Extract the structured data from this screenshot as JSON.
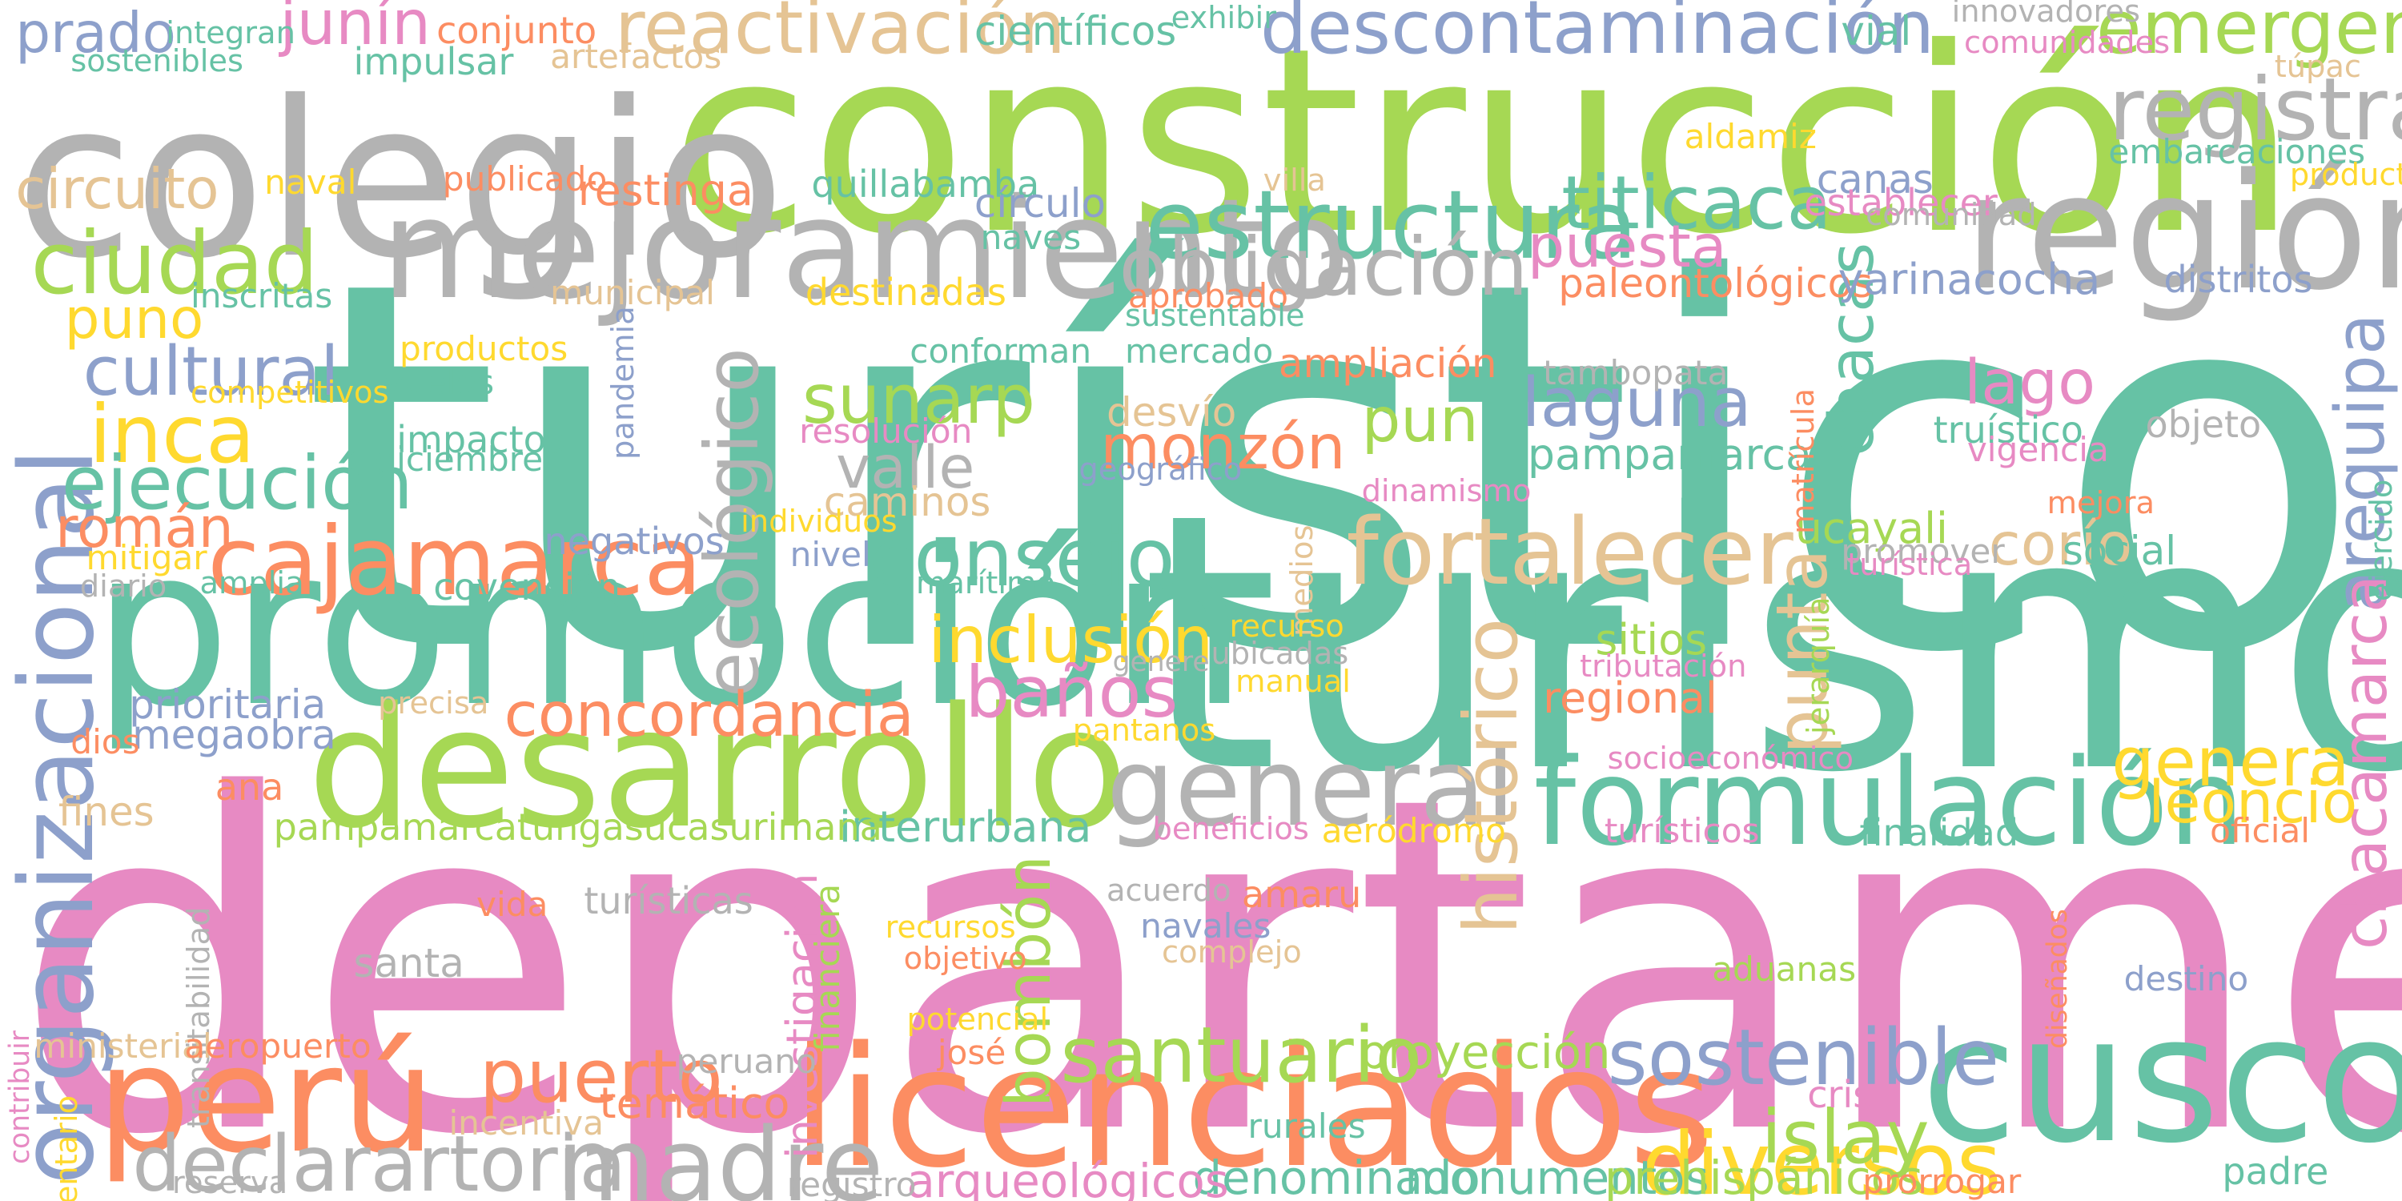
{
  "palette": {
    "teal": "#66c2a5",
    "orange": "#fc8d62",
    "blue": "#8da0cb",
    "pink": "#e78ac3",
    "green": "#a6d854",
    "yellow": "#ffd92f",
    "tan": "#e5c494",
    "gray": "#b3b3b3"
  },
  "words": [
    {
      "text": "turístico",
      "color": "teal"
    },
    {
      "text": "departamento",
      "color": "pink"
    },
    {
      "text": "turismo",
      "color": "teal"
    },
    {
      "text": "construcción",
      "color": "green"
    },
    {
      "text": "colegio",
      "color": "gray"
    },
    {
      "text": "promoción",
      "color": "teal"
    },
    {
      "text": "desarrollo",
      "color": "green"
    },
    {
      "text": "licenciados",
      "color": "orange"
    },
    {
      "text": "cusco",
      "color": "teal"
    },
    {
      "text": "región",
      "color": "gray"
    },
    {
      "text": "mejoramiento",
      "color": "gray"
    },
    {
      "text": "perú",
      "color": "orange"
    },
    {
      "text": "organizacional",
      "color": "blue"
    },
    {
      "text": "formulación",
      "color": "teal"
    },
    {
      "text": "general",
      "color": "gray"
    },
    {
      "text": "estructura",
      "color": "teal"
    },
    {
      "text": "madre",
      "color": "gray"
    },
    {
      "text": "cajamarca",
      "color": "orange"
    },
    {
      "text": "fortalecer",
      "color": "tan"
    },
    {
      "text": "diversos",
      "color": "yellow"
    },
    {
      "text": "registrar",
      "color": "gray"
    },
    {
      "text": "titicaca",
      "color": "teal"
    },
    {
      "text": "ciudad",
      "color": "green"
    },
    {
      "text": "obligación",
      "color": "gray"
    },
    {
      "text": "declarartoria",
      "color": "gray"
    },
    {
      "text": "santuario",
      "color": "green"
    },
    {
      "text": "consejo",
      "color": "teal"
    },
    {
      "text": "sostenible",
      "color": "blue"
    },
    {
      "text": "islay",
      "color": "green"
    },
    {
      "text": "ecológico",
      "color": "gray"
    },
    {
      "text": "histórico",
      "color": "tan"
    },
    {
      "text": "puerto",
      "color": "orange"
    },
    {
      "text": "inca",
      "color": "yellow"
    },
    {
      "text": "ejecución",
      "color": "teal"
    },
    {
      "text": "descontaminación",
      "color": "blue"
    },
    {
      "text": "reactivación",
      "color": "tan"
    },
    {
      "text": "emergencia",
      "color": "green"
    },
    {
      "text": "arequipa",
      "color": "blue"
    },
    {
      "text": "chacamarca",
      "color": "pink"
    },
    {
      "text": "punta",
      "color": "tan"
    },
    {
      "text": "cultural",
      "color": "blue"
    },
    {
      "text": "baños",
      "color": "pink"
    },
    {
      "text": "genera",
      "color": "yellow"
    },
    {
      "text": "laguna",
      "color": "blue"
    },
    {
      "text": "sunarp",
      "color": "green"
    },
    {
      "text": "inclusión",
      "color": "yellow"
    },
    {
      "text": "concordancia",
      "color": "orange"
    },
    {
      "text": "bombón",
      "color": "green"
    },
    {
      "text": "chacas",
      "color": "teal"
    },
    {
      "text": "monzón",
      "color": "orange"
    },
    {
      "text": "lago",
      "color": "pink"
    },
    {
      "text": "pun",
      "color": "green"
    },
    {
      "text": "valle",
      "color": "gray"
    },
    {
      "text": "corío",
      "color": "tan"
    },
    {
      "text": "leoncio",
      "color": "yellow"
    },
    {
      "text": "puesta",
      "color": "pink"
    },
    {
      "text": "junín",
      "color": "pink"
    },
    {
      "text": "circuito",
      "color": "tan"
    },
    {
      "text": "prado",
      "color": "blue"
    },
    {
      "text": "puno",
      "color": "yellow"
    },
    {
      "text": "román",
      "color": "orange"
    },
    {
      "text": "temático",
      "color": "orange"
    },
    {
      "text": "proyección",
      "color": "green"
    },
    {
      "text": "monumentos",
      "color": "teal"
    },
    {
      "text": "prehispánicos",
      "color": "green"
    },
    {
      "text": "denominado",
      "color": "teal"
    },
    {
      "text": "arqueológicos",
      "color": "pink"
    },
    {
      "text": "investigación",
      "color": "pink"
    },
    {
      "text": "regional",
      "color": "orange"
    },
    {
      "text": "amaru",
      "color": "orange"
    },
    {
      "text": "sitios",
      "color": "green"
    },
    {
      "text": "ucayali",
      "color": "green"
    },
    {
      "text": "paleontológicos",
      "color": "orange"
    },
    {
      "text": "yarinacocha",
      "color": "blue"
    },
    {
      "text": "pampamarca",
      "color": "teal"
    },
    {
      "text": "interurbana",
      "color": "teal"
    },
    {
      "text": "pampamarcatungasucasurimana",
      "color": "green"
    },
    {
      "text": "prioritaria",
      "color": "blue"
    },
    {
      "text": "megaobra",
      "color": "blue"
    },
    {
      "text": "ampliación",
      "color": "orange"
    },
    {
      "text": "caminos",
      "color": "tan"
    },
    {
      "text": "desvío",
      "color": "tan"
    },
    {
      "text": "conjunto",
      "color": "orange"
    },
    {
      "text": "impulsar",
      "color": "teal"
    },
    {
      "text": "artefactos",
      "color": "tan"
    },
    {
      "text": "integran",
      "color": "teal"
    },
    {
      "text": "sostenibles",
      "color": "teal"
    },
    {
      "text": "científicos",
      "color": "teal"
    },
    {
      "text": "exhibir",
      "color": "teal"
    },
    {
      "text": "vial",
      "color": "teal"
    },
    {
      "text": "innovadores",
      "color": "gray"
    },
    {
      "text": "comunidades",
      "color": "pink"
    },
    {
      "text": "túpac",
      "color": "tan"
    },
    {
      "text": "aldamiz",
      "color": "yellow"
    },
    {
      "text": "embarcaciones",
      "color": "teal"
    },
    {
      "text": "producto",
      "color": "yellow"
    },
    {
      "text": "naval",
      "color": "yellow"
    },
    {
      "text": "publicado",
      "color": "orange"
    },
    {
      "text": "restinga",
      "color": "orange"
    },
    {
      "text": "quillabamba",
      "color": "teal"
    },
    {
      "text": "villa",
      "color": "tan"
    },
    {
      "text": "círculo",
      "color": "blue"
    },
    {
      "text": "canas",
      "color": "blue"
    },
    {
      "text": "establecer",
      "color": "pink"
    },
    {
      "text": "comunidad",
      "color": "gray"
    },
    {
      "text": "naves",
      "color": "teal"
    },
    {
      "text": "distritos",
      "color": "blue"
    },
    {
      "text": "inscritas",
      "color": "teal"
    },
    {
      "text": "municipal",
      "color": "tan"
    },
    {
      "text": "destinadas",
      "color": "yellow"
    },
    {
      "text": "aprobado",
      "color": "orange"
    },
    {
      "text": "sustentable",
      "color": "teal"
    },
    {
      "text": "productos",
      "color": "yellow"
    },
    {
      "text": "pandemia",
      "color": "blue"
    },
    {
      "text": "conforman",
      "color": "teal"
    },
    {
      "text": "mercado",
      "color": "teal"
    },
    {
      "text": "tambopata",
      "color": "gray"
    },
    {
      "text": "vuelos",
      "color": "teal"
    },
    {
      "text": "competitivos",
      "color": "yellow"
    },
    {
      "text": "matrícula",
      "color": "orange"
    },
    {
      "text": "truístico",
      "color": "teal"
    },
    {
      "text": "objeto",
      "color": "gray"
    },
    {
      "text": "vigencia",
      "color": "pink"
    },
    {
      "text": "impactos",
      "color": "teal"
    },
    {
      "text": "diciembre",
      "color": "teal"
    },
    {
      "text": "resolución",
      "color": "pink"
    },
    {
      "text": "geográfico",
      "color": "blue"
    },
    {
      "text": "dinamismo",
      "color": "pink"
    },
    {
      "text": "mejora",
      "color": "orange"
    },
    {
      "text": "ejercido",
      "color": "teal"
    },
    {
      "text": "individuos",
      "color": "yellow"
    },
    {
      "text": "negativos",
      "color": "blue"
    },
    {
      "text": "nivel",
      "color": "blue"
    },
    {
      "text": "medios",
      "color": "tan"
    },
    {
      "text": "promover",
      "color": "gray"
    },
    {
      "text": "social",
      "color": "teal"
    },
    {
      "text": "turística",
      "color": "pink"
    },
    {
      "text": "mitigar",
      "color": "yellow"
    },
    {
      "text": "amplia",
      "color": "teal"
    },
    {
      "text": "covención",
      "color": "teal"
    },
    {
      "text": "diario",
      "color": "gray"
    },
    {
      "text": "marítimo",
      "color": "teal"
    },
    {
      "text": "recurso",
      "color": "yellow"
    },
    {
      "text": "ubicadas",
      "color": "gray"
    },
    {
      "text": "genere",
      "color": "gray"
    },
    {
      "text": "manual",
      "color": "yellow"
    },
    {
      "text": "jerarquía",
      "color": "green"
    },
    {
      "text": "tributación",
      "color": "pink"
    },
    {
      "text": "precisa",
      "color": "tan"
    },
    {
      "text": "pantanos",
      "color": "yellow"
    },
    {
      "text": "dios",
      "color": "orange"
    },
    {
      "text": "socioeconómico",
      "color": "pink"
    },
    {
      "text": "fines",
      "color": "tan"
    },
    {
      "text": "ana",
      "color": "orange"
    },
    {
      "text": "beneficios",
      "color": "pink"
    },
    {
      "text": "aeródromo",
      "color": "yellow"
    },
    {
      "text": "turísticos",
      "color": "pink"
    },
    {
      "text": "finalidad",
      "color": "teal"
    },
    {
      "text": "oficial",
      "color": "orange"
    },
    {
      "text": "acuerdo",
      "color": "gray"
    },
    {
      "text": "transitabilidad",
      "color": "gray"
    },
    {
      "text": "financiera",
      "color": "green"
    },
    {
      "text": "vida",
      "color": "orange"
    },
    {
      "text": "turísticas",
      "color": "gray"
    },
    {
      "text": "navales",
      "color": "blue"
    },
    {
      "text": "recursos",
      "color": "yellow"
    },
    {
      "text": "complejo",
      "color": "tan"
    },
    {
      "text": "objetivo",
      "color": "orange"
    },
    {
      "text": "santa",
      "color": "gray"
    },
    {
      "text": "aduanas",
      "color": "green"
    },
    {
      "text": "destino",
      "color": "blue"
    },
    {
      "text": "diseñados",
      "color": "orange"
    },
    {
      "text": "contribuir",
      "color": "pink"
    },
    {
      "text": "potencial",
      "color": "yellow"
    },
    {
      "text": "ministerial",
      "color": "tan"
    },
    {
      "text": "aeropuerto",
      "color": "orange"
    },
    {
      "text": "josé",
      "color": "orange"
    },
    {
      "text": "peruano",
      "color": "gray"
    },
    {
      "text": "inventario",
      "color": "yellow"
    },
    {
      "text": "incentiva",
      "color": "tan"
    },
    {
      "text": "crisis",
      "color": "pink"
    },
    {
      "text": "rurales",
      "color": "teal"
    },
    {
      "text": "reserva",
      "color": "gray"
    },
    {
      "text": "registro",
      "color": "gray"
    },
    {
      "text": "prorrogar",
      "color": "orange"
    },
    {
      "text": "padre",
      "color": "teal"
    }
  ]
}
